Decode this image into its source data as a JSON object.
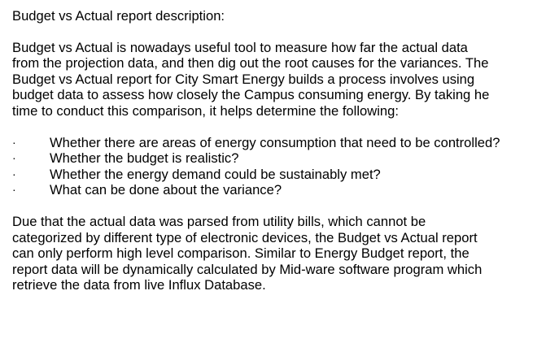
{
  "heading": "Budget vs Actual report description:",
  "paragraph1": [
    "Budget vs Actual is nowadays useful tool to measure how far the actual data",
    "from the projection data, and then dig out the root causes for the variances. The",
    "Budget vs Actual report for City Smart Energy builds a process involves using",
    "budget data to assess how closely the Campus consuming energy. By taking he",
    "time to conduct this comparison, it helps determine the following:"
  ],
  "bullet_marker": "·",
  "bullets": [
    "Whether there are areas of energy consumption that need to be controlled?",
    "Whether the budget is realistic?",
    "Whether the energy demand could be sustainably met?",
    "What can be done about the variance?"
  ],
  "paragraph2": [
    "Due that the actual data was parsed from utility bills, which cannot be",
    "categorized by different type of electronic devices, the Budget vs Actual report",
    "can only perform high level comparison. Similar to Energy Budget report, the",
    "report data will be dynamically calculated by Mid-ware software program which",
    "retrieve the data from live Influx Database."
  ]
}
